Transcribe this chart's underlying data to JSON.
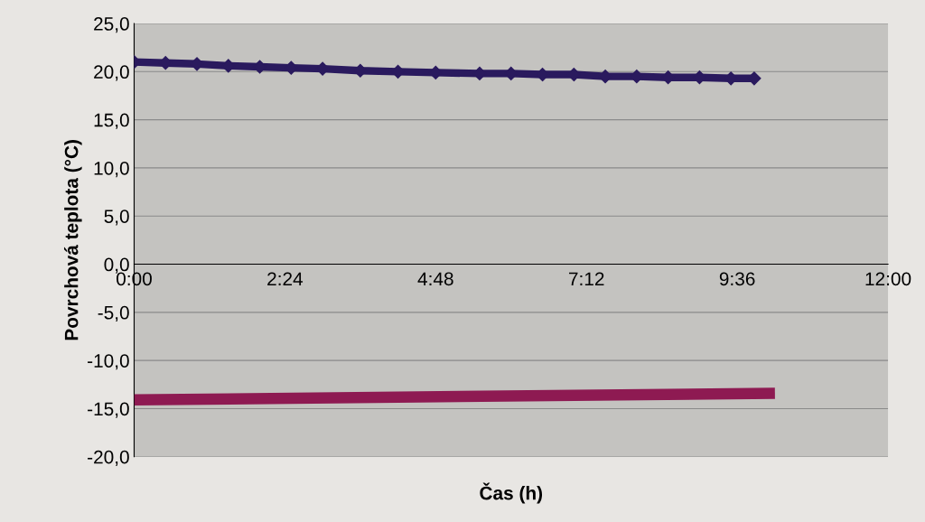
{
  "chart_data": {
    "type": "line",
    "xlabel": "Čas (h)",
    "ylabel": "Povrchová teplota (°C)",
    "xlim": [
      0,
      12
    ],
    "xticks": [
      {
        "value": 0,
        "label": "0:00"
      },
      {
        "value": 2.4,
        "label": "2:24"
      },
      {
        "value": 4.8,
        "label": "4:48"
      },
      {
        "value": 7.2,
        "label": "7:12"
      },
      {
        "value": 9.6,
        "label": "9:36"
      },
      {
        "value": 12,
        "label": "12:00"
      }
    ],
    "ylim": [
      -20,
      25
    ],
    "yticks": [
      {
        "value": -20,
        "label": "-20,0"
      },
      {
        "value": -15,
        "label": "-15,0"
      },
      {
        "value": -10,
        "label": "-10,0"
      },
      {
        "value": -5,
        "label": "-5,0"
      },
      {
        "value": 0,
        "label": "0,0"
      },
      {
        "value": 5,
        "label": "5,0"
      },
      {
        "value": 10,
        "label": "10,0"
      },
      {
        "value": 15,
        "label": "15,0"
      },
      {
        "value": 20,
        "label": "20,0"
      },
      {
        "value": 25,
        "label": "25,0"
      }
    ],
    "grid": "y",
    "legend": false,
    "series": [
      {
        "color": "#2a1a5e",
        "marker": "diamond",
        "x": [
          0,
          0.5,
          1.0,
          1.5,
          2.0,
          2.5,
          3.0,
          3.6,
          4.2,
          4.8,
          5.5,
          6.0,
          6.5,
          7.0,
          7.5,
          8.0,
          8.5,
          9.0,
          9.5,
          9.87
        ],
        "values": [
          21.0,
          20.9,
          20.8,
          20.6,
          20.5,
          20.4,
          20.3,
          20.1,
          20.0,
          19.9,
          19.8,
          19.8,
          19.7,
          19.7,
          19.5,
          19.5,
          19.4,
          19.4,
          19.3,
          19.3
        ]
      },
      {
        "color": "#8e1a52",
        "marker": "none",
        "x": [
          0,
          10.2
        ],
        "values": [
          -14.1,
          -13.4
        ]
      }
    ]
  }
}
